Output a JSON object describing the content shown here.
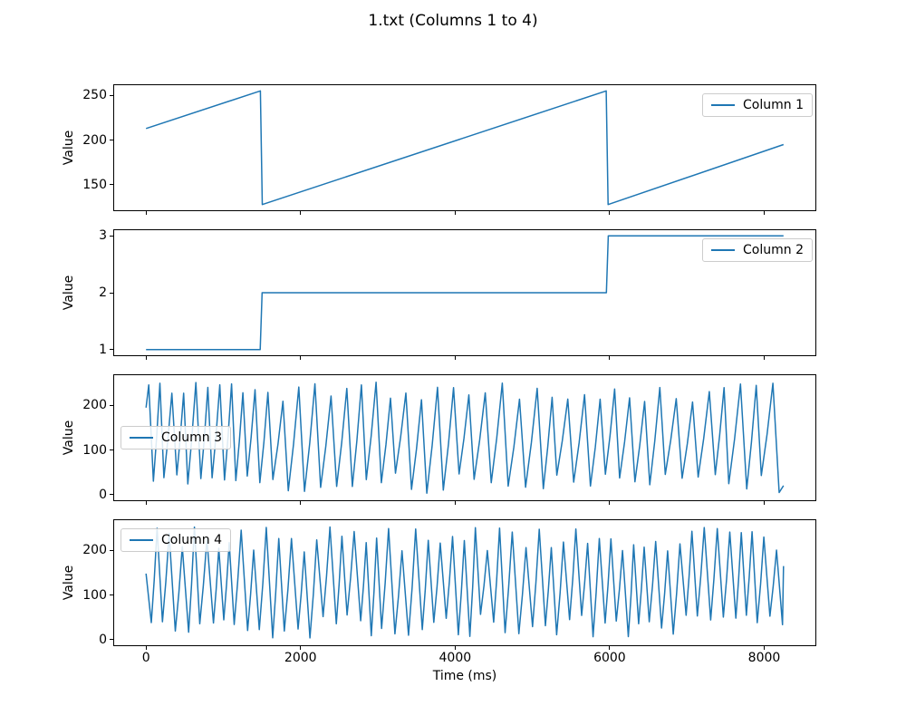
{
  "figure": {
    "title": "1.txt (Columns 1 to 4)",
    "background": "#ffffff",
    "line_color": "#1f77b4",
    "spine_color": "#000000"
  },
  "xaxis": {
    "label": "Time (ms)",
    "xlim": [
      -412.5,
      8662.5
    ],
    "ticks": [
      0,
      2000,
      4000,
      6000,
      8000
    ],
    "tick_labels": [
      "0",
      "2000",
      "4000",
      "6000",
      "8000"
    ]
  },
  "chart_data": [
    {
      "type": "line",
      "ylabel": "Value",
      "ylim": [
        121.65,
        261.35
      ],
      "yticks": {
        "values": [
          150,
          200,
          250
        ],
        "labels": [
          "150",
          "200",
          "250"
        ]
      },
      "legend": {
        "label": "Column 1",
        "loc": "upper-right"
      },
      "grid": false,
      "series": [
        {
          "name": "Column 1",
          "points": [
            [
              0,
              213
            ],
            [
              1480,
              255
            ],
            [
              1505,
              128
            ],
            [
              5955,
              255
            ],
            [
              5980,
              128
            ],
            [
              8250,
              195
            ]
          ]
        }
      ]
    },
    {
      "type": "line",
      "ylabel": "Value",
      "ylim": [
        0.9,
        3.1
      ],
      "yticks": {
        "values": [
          1,
          2,
          3
        ],
        "labels": [
          "1",
          "2",
          "3"
        ]
      },
      "legend": {
        "label": "Column 2",
        "loc": "upper-right"
      },
      "grid": false,
      "series": [
        {
          "name": "Column 2",
          "points": [
            [
              0,
              1
            ],
            [
              1478,
              1
            ],
            [
              1502,
              2
            ],
            [
              5958,
              2
            ],
            [
              5982,
              3
            ],
            [
              8250,
              3
            ]
          ]
        }
      ]
    },
    {
      "type": "line",
      "ylabel": "Value",
      "ylim": [
        -12.75,
        267.75
      ],
      "yticks": {
        "values": [
          0,
          100,
          200
        ],
        "labels": [
          "0",
          "100",
          "200"
        ]
      },
      "legend": {
        "label": "Column 3",
        "loc": "center-left"
      },
      "grid": false,
      "series": [
        {
          "name": "Column 3",
          "synth": {
            "seed": 7,
            "value_range": [
              0,
              255
            ],
            "head": [
              [
                0,
                195
              ],
              [
                35,
                246
              ],
              [
                95,
                30
              ]
            ],
            "tail": [
              [
                8250,
                20
              ]
            ],
            "segments": [
              {
                "t0": 95,
                "t1": 1480,
                "period": 148,
                "lo": [
                  22,
                  48
                ],
                "hi": [
                  226,
                  252
                ],
                "rise": 0.62
              },
              {
                "t0": 1480,
                "t1": 8250,
                "period": 202,
                "lo": [
                  3,
                  52
                ],
                "hi": [
                  204,
                  252
                ],
                "rise": 0.65
              }
            ]
          }
        }
      ]
    },
    {
      "type": "line",
      "ylabel": "Value",
      "ylim": [
        -12.75,
        267.75
      ],
      "yticks": {
        "values": [
          0,
          100,
          200
        ],
        "labels": [
          "0",
          "100",
          "200"
        ]
      },
      "legend": {
        "label": "Column 4",
        "loc": "upper-left"
      },
      "grid": false,
      "series": [
        {
          "name": "Column 4",
          "synth": {
            "seed": 29,
            "value_range": [
              0,
              255
            ],
            "head": [
              [
                0,
                148
              ],
              [
                68,
                38
              ]
            ],
            "tail": [
              [
                8250,
                165
              ]
            ],
            "segments": [
              {
                "t0": 68,
                "t1": 8250,
                "period": 156,
                "lo": [
                  2,
                  58
                ],
                "hi": [
                  196,
                  255
                ],
                "rise": 0.52
              }
            ]
          }
        }
      ]
    }
  ]
}
